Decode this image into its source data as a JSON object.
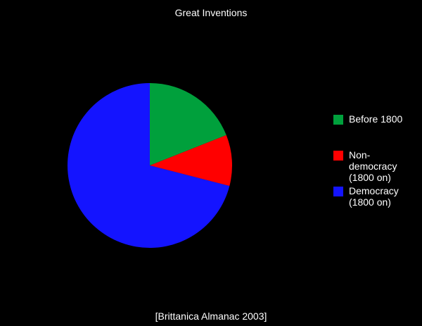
{
  "chart_data": {
    "type": "pie",
    "title": "Great Inventions",
    "source": "[Brittanica Almanac 2003]",
    "slices": [
      {
        "label": "Before 1800",
        "value": 19,
        "color": "#00a03c"
      },
      {
        "label": "Non-democracy (1800 on)",
        "value": 10,
        "color": "#ff0000"
      },
      {
        "label": "Democracy (1800 on)",
        "value": 71,
        "color": "#1414ff"
      }
    ],
    "legend": {
      "position": "right",
      "entries": [
        {
          "lines": [
            "Before 1800"
          ],
          "color": "#00a03c"
        },
        {
          "lines": [
            "Non-",
            "democracy",
            "(1800 on)"
          ],
          "color": "#ff0000"
        },
        {
          "lines": [
            "Democracy",
            "(1800 on)"
          ],
          "color": "#1414ff"
        }
      ]
    }
  }
}
